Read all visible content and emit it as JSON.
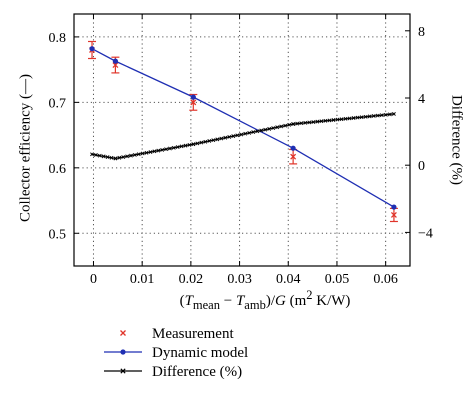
{
  "chart_data": {
    "type": "line",
    "xlabel": "(Tmean − Tamb)/G (m2 K/W)",
    "xlabel_parts": {
      "open": "(",
      "t1": "T",
      "sub1": "mean",
      "minus": " − ",
      "t2": "T",
      "sub2": "amb",
      "close": ")/",
      "g": "G",
      "unit_open": " (m",
      "sup": "2",
      "unit_close": " K/W)"
    },
    "ylabel": "Collector efficiency (—)",
    "ylabel_right": "Difference (%)",
    "xlim": [
      -0.004,
      0.065
    ],
    "ylim": [
      0.45,
      0.835
    ],
    "ylim_right": [
      -6.0,
      9.0
    ],
    "x_ticks": [
      0,
      0.01,
      0.02,
      0.03,
      0.04,
      0.05,
      0.06
    ],
    "x_tick_labels": [
      "0",
      "0.01",
      "0.02",
      "0.03",
      "0.04",
      "0.05",
      "0.06"
    ],
    "y_ticks": [
      0.5,
      0.6,
      0.7,
      0.8
    ],
    "y_tick_labels": [
      "0.5",
      "0.6",
      "0.7",
      "0.8"
    ],
    "y_right_ticks": [
      -4,
      0,
      4,
      8
    ],
    "y_right_tick_labels": [
      "−4",
      "0",
      "4",
      "8"
    ],
    "grid": true,
    "legend_placement": "bottom",
    "series": [
      {
        "name": "Measurement",
        "axis": "left",
        "marker": "x",
        "color": "#e0352b",
        "error_color": "#e0352b",
        "x": [
          -0.0003,
          0.0045,
          0.0205,
          0.041,
          0.0617
        ],
        "y": [
          0.78,
          0.757,
          0.7,
          0.617,
          0.528
        ],
        "err": [
          0.013,
          0.012,
          0.012,
          0.011,
          0.01
        ]
      },
      {
        "name": "Dynamic model",
        "axis": "left",
        "marker": "dot",
        "color": "#1f2fb3",
        "x": [
          -0.0003,
          0.0045,
          0.0205,
          0.041,
          0.0617
        ],
        "y": [
          0.782,
          0.763,
          0.708,
          0.63,
          0.54
        ]
      },
      {
        "name": "Difference (%)",
        "axis": "right",
        "marker": "dense-x",
        "color": "#000000",
        "x": [
          -0.0003,
          0.0045,
          0.0205,
          0.041,
          0.0617
        ],
        "y": [
          0.65,
          0.4,
          1.25,
          2.45,
          3.05
        ]
      }
    ]
  }
}
